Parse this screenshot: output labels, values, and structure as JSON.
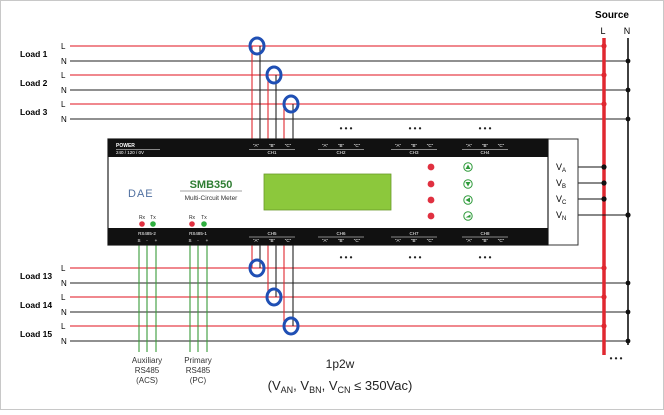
{
  "source": {
    "title": "Source",
    "l": "L",
    "n": "N"
  },
  "loads": [
    {
      "name": "Load 1",
      "l": "L",
      "n": "N"
    },
    {
      "name": "Load 2",
      "l": "L",
      "n": "N"
    },
    {
      "name": "Load 3",
      "l": "L",
      "n": "N"
    },
    {
      "name": "Load 13",
      "l": "L",
      "n": "N"
    },
    {
      "name": "Load 14",
      "l": "L",
      "n": "N"
    },
    {
      "name": "Load 15",
      "l": "L",
      "n": "N"
    }
  ],
  "device": {
    "power_title": "POWER",
    "power_sub": "240 / 120 / 0V",
    "brand": "DAE",
    "model": "SMB350",
    "subtitle": "Multi-Circuit Meter",
    "rx": "Rx",
    "tx": "Tx",
    "rs485_2": "RS485-2",
    "rs485_1": "RS485-1",
    "rs_pins": [
      "S",
      "-",
      "+"
    ],
    "ct_a": "\"A\"",
    "ct_b": "\"B\"",
    "ct_c": "\"C\"",
    "channels_top": [
      "CH1",
      "CH2",
      "CH3",
      "CH4"
    ],
    "channels_bottom": [
      "CH5",
      "CH6",
      "CH7",
      "CH8"
    ],
    "voltage_inputs": [
      {
        "main": "V",
        "sub": "A"
      },
      {
        "main": "V",
        "sub": "B"
      },
      {
        "main": "V",
        "sub": "C"
      },
      {
        "main": "V",
        "sub": "N"
      }
    ]
  },
  "ellipsis": "• • •",
  "aux_label": [
    "Auxiliary",
    "RS485",
    "(ACS)"
  ],
  "primary_label": [
    "Primary",
    "RS485",
    "(PC)"
  ],
  "note_title": "1p2w",
  "note_formula": {
    "open": "(V",
    "an": "AN",
    "sep1": ", V",
    "bn": "BN",
    "sep2": ", V",
    "cn": "CN",
    "tail": " ≤ 350Vac)"
  }
}
